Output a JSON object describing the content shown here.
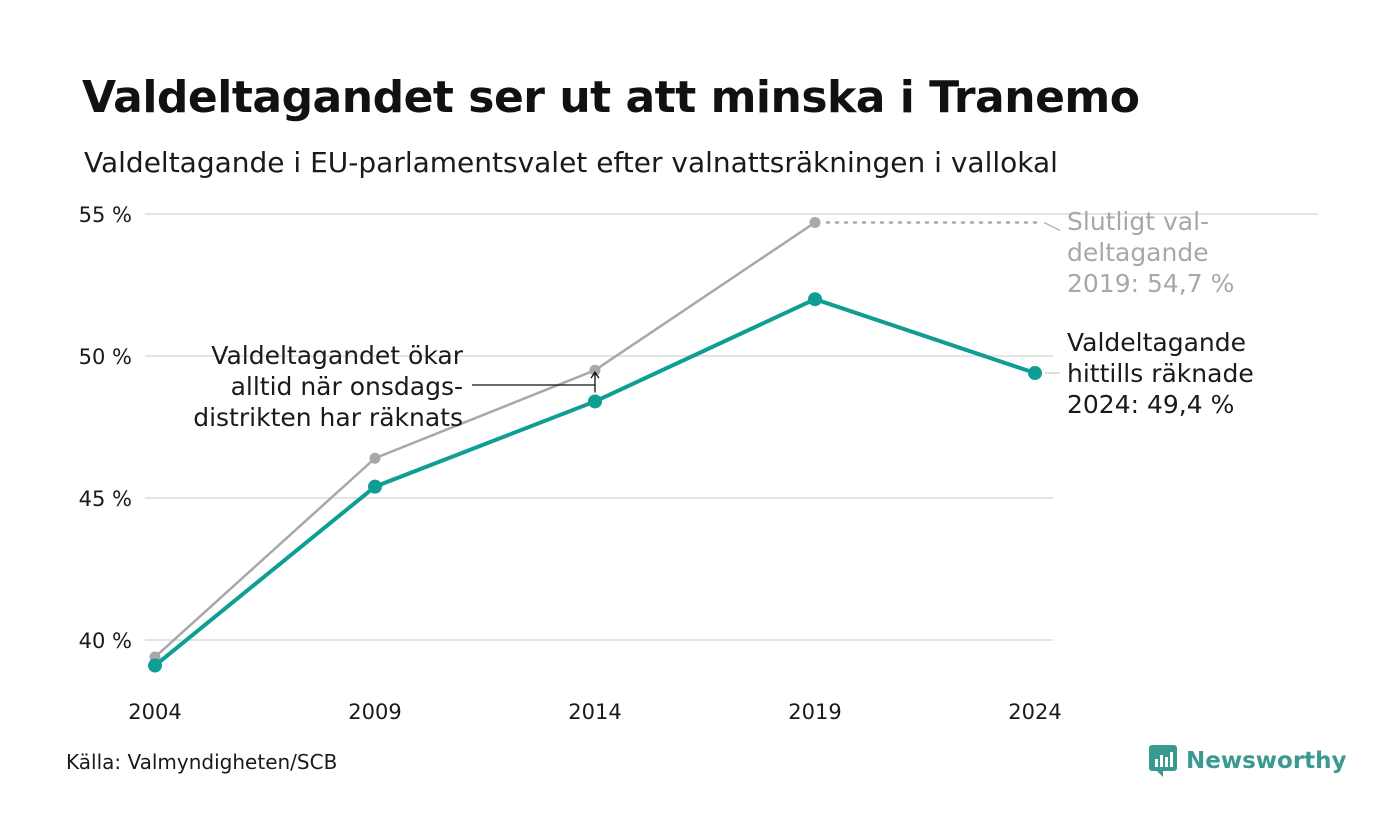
{
  "title": "Valdeltagandet ser ut att minska i Tranemo",
  "subtitle": "Valdeltagande i EU-parlamentsvalet efter valnattsräkningen i vallokal",
  "source": "Källa: Valmyndigheten/SCB",
  "brand": {
    "name": "Newsworthy",
    "icon": "newsworthy-logo-icon"
  },
  "colors": {
    "counted": "#0e9e93",
    "final": "#a8a8a8",
    "grid": "#e4e4e4",
    "text": "#1a1a1a"
  },
  "chart_data": {
    "type": "line",
    "x": [
      2004,
      2009,
      2014,
      2019,
      2024
    ],
    "x_tick_labels": [
      "2004",
      "2009",
      "2014",
      "2019",
      "2024"
    ],
    "y_ticks": [
      40,
      45,
      50,
      55
    ],
    "y_tick_labels": [
      "40 %",
      "45 %",
      "50 %",
      "55 %"
    ],
    "ylim": [
      39,
      55
    ],
    "grid": true,
    "series": [
      {
        "key": "final",
        "x": [
          2004,
          2009,
          2014,
          2019
        ],
        "values": [
          39.4,
          46.4,
          49.5,
          54.7
        ]
      },
      {
        "key": "counted",
        "x": [
          2004,
          2009,
          2014,
          2019,
          2024
        ],
        "values": [
          39.1,
          45.4,
          48.4,
          52.0,
          49.4
        ]
      }
    ],
    "annotations": {
      "final_label": [
        "Slutligt val-",
        "deltagande",
        "2019: 54,7 %"
      ],
      "counted_label": [
        "Valdeltagande",
        "hittills räknade",
        "2024: 49,4 %"
      ],
      "note": [
        "Valdeltagandet ökar",
        "alltid när onsdags-",
        "distrikten har räknats"
      ]
    }
  }
}
